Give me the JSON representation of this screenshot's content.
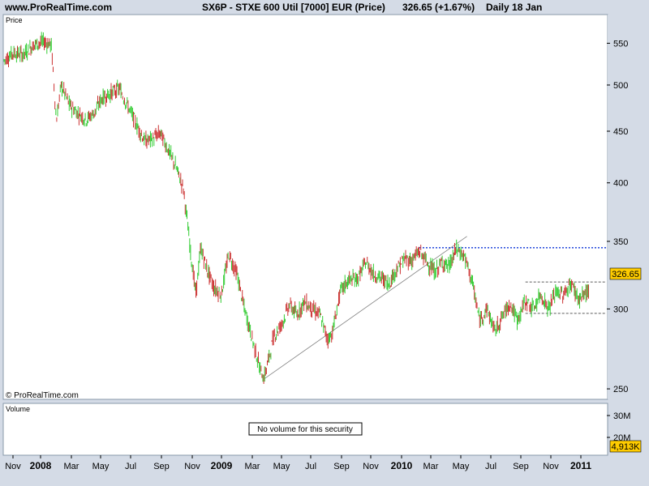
{
  "header": {
    "site": "www.ProRealTime.com",
    "title": "SX6P - STXE 600 Util [7000] EUR (Price)",
    "last": "326.65 (+1.67%)",
    "period": "Daily  18 Jan"
  },
  "panels": {
    "price_label": "Price",
    "copyright": "© ProRealTime.com",
    "volume_label": "Volume",
    "no_volume_msg": "No volume for this security",
    "last_price_badge": "326.65",
    "last_volume_badge": "4,913K"
  },
  "colors": {
    "up": "#33cc33",
    "down": "#cc3333",
    "support_resistance": "#3355dd",
    "trendline": "#808080",
    "range_lines": "#888888",
    "badge": "#ffcc00",
    "volume_label": "#33cc33"
  },
  "chart_data": {
    "type": "line",
    "title": "SX6P - STXE 600 Util [7000] EUR (Price)",
    "scale": "log",
    "ylim": [
      245,
      585
    ],
    "y_ticks": [
      250,
      300,
      350,
      400,
      450,
      500,
      550
    ],
    "x_ticks": [
      "Nov",
      "2008",
      "Mar",
      "May",
      "Jul",
      "Sep",
      "Nov",
      "2009",
      "Mar",
      "May",
      "Jul",
      "Sep",
      "Nov",
      "2010",
      "Mar",
      "May",
      "Jul",
      "Sep",
      "Nov",
      "2011"
    ],
    "x_tick_bold": [
      "2008",
      "2009",
      "2010",
      "2011"
    ],
    "x_range": [
      "2007-10-01",
      "2011-01-18"
    ],
    "volume_ticks": [
      "30M",
      "20M"
    ],
    "series": [
      {
        "x": [
          "2007-10-01",
          "2007-10-20",
          "2007-11-10",
          "2007-12-01",
          "2007-12-20",
          "2008-01-05",
          "2008-01-15",
          "2008-01-25",
          "2008-02-10",
          "2008-02-25",
          "2008-03-15",
          "2008-04-01",
          "2008-04-15",
          "2008-05-01",
          "2008-05-20",
          "2008-06-10",
          "2008-06-25",
          "2008-07-10",
          "2008-07-25",
          "2008-08-10",
          "2008-08-25",
          "2008-09-10",
          "2008-09-25",
          "2008-10-10",
          "2008-10-20",
          "2008-10-30",
          "2008-11-10",
          "2008-11-25",
          "2008-12-10",
          "2008-12-25",
          "2009-01-10",
          "2009-01-25",
          "2009-02-10",
          "2009-02-25",
          "2009-03-05",
          "2009-03-15",
          "2009-03-25",
          "2009-04-10",
          "2009-04-25",
          "2009-05-10",
          "2009-05-25",
          "2009-06-10",
          "2009-06-25",
          "2009-07-10",
          "2009-07-20",
          "2009-08-05",
          "2009-08-20",
          "2009-09-10",
          "2009-09-25",
          "2009-10-10",
          "2009-10-25",
          "2009-11-10",
          "2009-11-25",
          "2009-12-10",
          "2009-12-25",
          "2010-01-10",
          "2010-01-25",
          "2010-02-10",
          "2010-02-25",
          "2010-03-10",
          "2010-03-25",
          "2010-04-10",
          "2010-04-25",
          "2010-05-10",
          "2010-05-25",
          "2010-06-10",
          "2010-06-25",
          "2010-07-10",
          "2010-07-25",
          "2010-08-10",
          "2010-08-25",
          "2010-09-10",
          "2010-09-25",
          "2010-10-10",
          "2010-10-25",
          "2010-11-10",
          "2010-11-25",
          "2010-12-10",
          "2010-12-25",
          "2011-01-10",
          "2011-01-18"
        ],
        "values": [
          528,
          538,
          536,
          548,
          552,
          548,
          460,
          500,
          478,
          470,
          462,
          470,
          485,
          490,
          496,
          472,
          455,
          440,
          442,
          448,
          432,
          415,
          395,
          340,
          310,
          345,
          330,
          315,
          310,
          340,
          325,
          300,
          280,
          262,
          256,
          268,
          282,
          290,
          303,
          296,
          305,
          300,
          296,
          280,
          284,
          312,
          320,
          322,
          334,
          325,
          322,
          318,
          328,
          336,
          335,
          342,
          334,
          326,
          334,
          330,
          344,
          338,
          320,
          292,
          300,
          285,
          295,
          304,
          292,
          306,
          300,
          310,
          300,
          312,
          310,
          318,
          306,
          312,
          310,
          318,
          326.65
        ]
      }
    ],
    "annotations": [
      {
        "type": "trendline",
        "from": [
          "2009-03-07",
          256
        ],
        "to": [
          "2010-04-15",
          354
        ]
      },
      {
        "type": "hline",
        "value": 345,
        "from": "2010-01-10",
        "to": "2011-01-18",
        "style": "dotted-blue"
      },
      {
        "type": "hline",
        "value": 319,
        "from": "2010-08-10",
        "to": "2011-01-18",
        "style": "dashed-grey"
      },
      {
        "type": "hline",
        "value": 297,
        "from": "2010-08-10",
        "to": "2011-01-18",
        "style": "dashed-grey"
      }
    ]
  }
}
